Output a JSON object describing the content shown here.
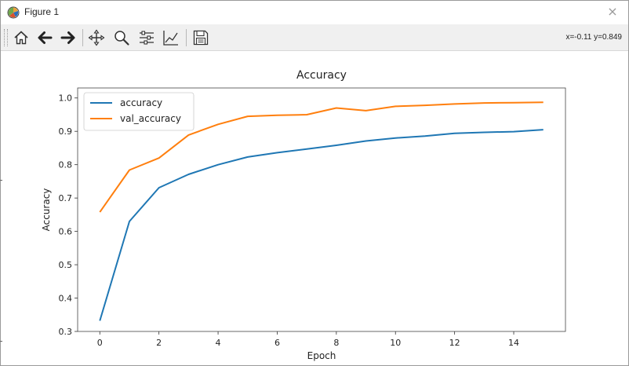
{
  "window": {
    "title": "Figure 1",
    "close_glyph": "×"
  },
  "toolbar": {
    "buttons": [
      {
        "name": "home-icon",
        "tooltip": "Home"
      },
      {
        "name": "back-icon",
        "tooltip": "Back"
      },
      {
        "name": "forward-icon",
        "tooltip": "Forward"
      },
      {
        "name": "pan-icon",
        "tooltip": "Pan"
      },
      {
        "name": "zoom-icon",
        "tooltip": "Zoom"
      },
      {
        "name": "configure-subplots-icon",
        "tooltip": "Subplots"
      },
      {
        "name": "edit-axis-icon",
        "tooltip": "Customize"
      },
      {
        "name": "save-icon",
        "tooltip": "Save"
      }
    ],
    "coords_readout": "x=-0.11 y=0.849"
  },
  "chart_data": {
    "type": "line",
    "title": "Accuracy",
    "xlabel": "Epoch",
    "ylabel": "Accuracy",
    "xlim": [
      -0.75,
      15.75
    ],
    "ylim": [
      0.3,
      1.03
    ],
    "xticks": [
      0,
      2,
      4,
      6,
      8,
      10,
      12,
      14
    ],
    "yticks": [
      0.3,
      0.4,
      0.5,
      0.6,
      0.7,
      0.8,
      0.9,
      1.0
    ],
    "ytick_labels": [
      "0.3",
      "0.4",
      "0.5",
      "0.6",
      "0.7",
      "0.8",
      "0.9",
      "1.0"
    ],
    "grid": false,
    "legend_position": "upper left",
    "x": [
      0,
      1,
      2,
      3,
      4,
      5,
      6,
      7,
      8,
      9,
      10,
      11,
      12,
      13,
      14,
      15
    ],
    "series": [
      {
        "name": "accuracy",
        "color": "#1f77b4",
        "values": [
          0.332,
          0.63,
          0.731,
          0.771,
          0.8,
          0.823,
          0.836,
          0.847,
          0.858,
          0.871,
          0.88,
          0.886,
          0.894,
          0.897,
          0.899,
          0.905
        ]
      },
      {
        "name": "val_accuracy",
        "color": "#ff7f0e",
        "values": [
          0.658,
          0.784,
          0.82,
          0.889,
          0.921,
          0.945,
          0.948,
          0.95,
          0.97,
          0.962,
          0.975,
          0.978,
          0.982,
          0.985,
          0.986,
          0.987
        ]
      }
    ]
  }
}
